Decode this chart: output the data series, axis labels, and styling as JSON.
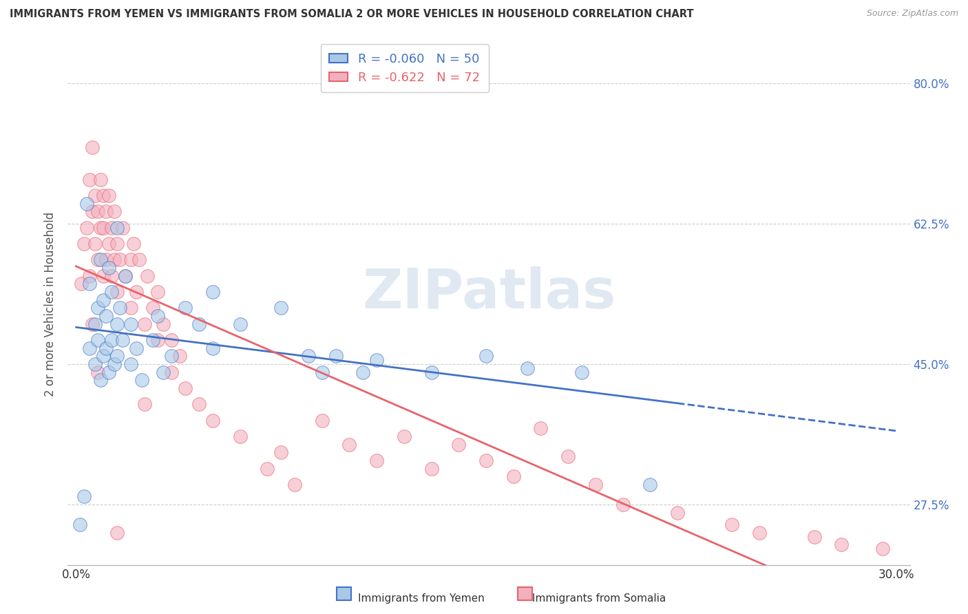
{
  "title": "IMMIGRANTS FROM YEMEN VS IMMIGRANTS FROM SOMALIA 2 OR MORE VEHICLES IN HOUSEHOLD CORRELATION CHART",
  "source": "Source: ZipAtlas.com",
  "ylabel": "2 or more Vehicles in Household",
  "xlim": [
    0.0,
    30.0
  ],
  "ylim": [
    20.0,
    85.0
  ],
  "xticks": [
    0.0,
    5.0,
    10.0,
    15.0,
    20.0,
    25.0,
    30.0
  ],
  "yticks": [
    27.5,
    45.0,
    62.5,
    80.0
  ],
  "ytick_labels": [
    "27.5%",
    "45.0%",
    "62.5%",
    "80.0%"
  ],
  "xtick_labels": [
    "0.0%",
    "",
    "",
    "",
    "",
    "",
    "30.0%"
  ],
  "color_yemen": "#A8C8E8",
  "color_somalia": "#F2B0BE",
  "line_color_yemen": "#4472C4",
  "line_color_somalia": "#E8636A",
  "R_yemen": -0.06,
  "N_yemen": 50,
  "R_somalia": -0.622,
  "N_somalia": 72,
  "watermark": "ZIPatlas",
  "yemen_x": [
    0.15,
    0.3,
    0.5,
    0.5,
    0.7,
    0.7,
    0.8,
    0.8,
    0.9,
    0.9,
    1.0,
    1.0,
    1.1,
    1.1,
    1.2,
    1.2,
    1.3,
    1.3,
    1.4,
    1.5,
    1.5,
    1.5,
    1.6,
    1.7,
    1.8,
    2.0,
    2.0,
    2.2,
    2.4,
    2.8,
    3.0,
    3.5,
    4.0,
    4.5,
    5.0,
    5.0,
    6.0,
    7.5,
    8.5,
    9.0,
    9.5,
    10.5,
    11.0,
    13.0,
    15.0,
    16.5,
    18.5,
    21.0,
    0.4,
    3.2
  ],
  "yemen_y": [
    25.0,
    28.5,
    47.0,
    55.0,
    45.0,
    50.0,
    48.0,
    52.0,
    43.0,
    58.0,
    46.0,
    53.0,
    47.0,
    51.0,
    44.0,
    57.0,
    48.0,
    54.0,
    45.0,
    50.0,
    46.0,
    62.0,
    52.0,
    48.0,
    56.0,
    50.0,
    45.0,
    47.0,
    43.0,
    48.0,
    51.0,
    46.0,
    52.0,
    50.0,
    47.0,
    54.0,
    50.0,
    52.0,
    46.0,
    44.0,
    46.0,
    44.0,
    45.5,
    44.0,
    46.0,
    44.5,
    44.0,
    30.0,
    65.0,
    44.0
  ],
  "somalia_x": [
    0.2,
    0.3,
    0.4,
    0.5,
    0.5,
    0.6,
    0.6,
    0.7,
    0.7,
    0.8,
    0.8,
    0.9,
    0.9,
    1.0,
    1.0,
    1.0,
    1.1,
    1.1,
    1.2,
    1.2,
    1.3,
    1.3,
    1.4,
    1.4,
    1.5,
    1.5,
    1.6,
    1.7,
    1.8,
    2.0,
    2.0,
    2.1,
    2.2,
    2.3,
    2.5,
    2.6,
    2.8,
    3.0,
    3.0,
    3.2,
    3.5,
    3.5,
    3.8,
    4.0,
    4.5,
    5.0,
    6.0,
    7.0,
    7.5,
    8.0,
    9.0,
    10.0,
    11.0,
    12.0,
    13.0,
    14.0,
    15.0,
    16.0,
    17.0,
    18.0,
    19.0,
    20.0,
    22.0,
    24.0,
    25.0,
    27.0,
    28.0,
    29.5,
    1.5,
    2.5,
    0.6,
    0.8
  ],
  "somalia_y": [
    55.0,
    60.0,
    62.0,
    68.0,
    56.0,
    64.0,
    72.0,
    60.0,
    66.0,
    58.0,
    64.0,
    62.0,
    68.0,
    56.0,
    62.0,
    66.0,
    58.0,
    64.0,
    60.0,
    66.0,
    56.0,
    62.0,
    58.0,
    64.0,
    60.0,
    54.0,
    58.0,
    62.0,
    56.0,
    52.0,
    58.0,
    60.0,
    54.0,
    58.0,
    50.0,
    56.0,
    52.0,
    48.0,
    54.0,
    50.0,
    44.0,
    48.0,
    46.0,
    42.0,
    40.0,
    38.0,
    36.0,
    32.0,
    34.0,
    30.0,
    38.0,
    35.0,
    33.0,
    36.0,
    32.0,
    35.0,
    33.0,
    31.0,
    37.0,
    33.5,
    30.0,
    27.5,
    26.5,
    25.0,
    24.0,
    23.5,
    22.5,
    22.0,
    24.0,
    40.0,
    50.0,
    44.0
  ]
}
